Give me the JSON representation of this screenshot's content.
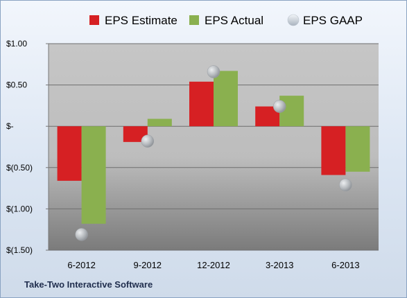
{
  "chart_data": {
    "type": "bar",
    "categories": [
      "6-2012",
      "9-2012",
      "12-2012",
      "3-2013",
      "6-2013"
    ],
    "series": [
      {
        "name": "EPS Estimate",
        "values": [
          -0.66,
          -0.19,
          0.54,
          0.24,
          -0.59
        ],
        "color": "#d62023"
      },
      {
        "name": "EPS Actual",
        "values": [
          -1.18,
          0.09,
          0.67,
          0.37,
          -0.55
        ],
        "color": "#8ab04f"
      },
      {
        "name": "EPS GAAP",
        "values": [
          -1.31,
          -0.18,
          0.66,
          0.24,
          -0.71
        ],
        "color": "#b8bcc0",
        "style": "marker"
      }
    ],
    "yticks": [
      1.0,
      0.5,
      0.0,
      -0.5,
      -1.0,
      -1.5
    ],
    "ytick_labels": [
      "$1.00",
      "$0.50",
      "$-",
      "$(0.50)",
      "$(1.00)",
      "$(1.50)"
    ],
    "ylim": [
      -1.5,
      1.0
    ],
    "grid": true,
    "legend_position": "top",
    "title": "",
    "xlabel": "",
    "ylabel": ""
  },
  "footer": {
    "company": "Take-Two Interactive Software"
  }
}
